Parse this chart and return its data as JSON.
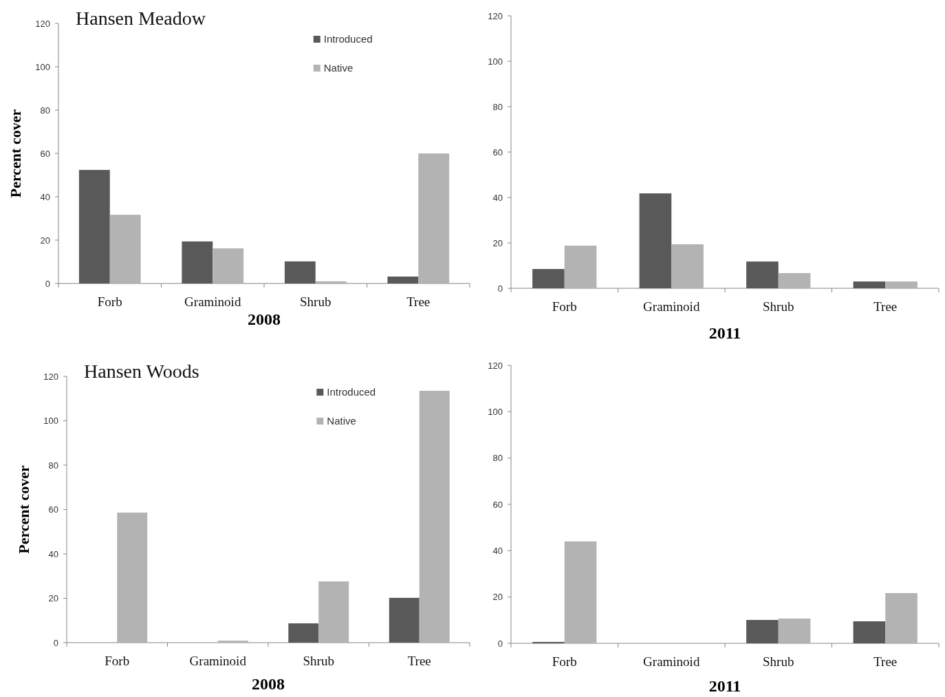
{
  "chart_data": [
    {
      "type": "bar",
      "title": "Hansen Meadow",
      "xlabel": "2008",
      "ylabel": "Percent cover",
      "categories": [
        "Forb",
        "Graminoid",
        "Shrub",
        "Tree"
      ],
      "ylim": [
        0,
        120
      ],
      "yticks": [
        0,
        20,
        40,
        60,
        80,
        100,
        120
      ],
      "legend": "top",
      "grid": false,
      "series": [
        {
          "name": "Introduced",
          "color": "#595959",
          "values": [
            52.4,
            19.4,
            10.2,
            3.2
          ]
        },
        {
          "name": "Native",
          "color": "#b3b3b3",
          "values": [
            31.7,
            16.2,
            1,
            60
          ]
        }
      ]
    },
    {
      "type": "bar",
      "xlabel": "2011",
      "categories": [
        "Forb",
        "Graminoid",
        "Shrub",
        "Tree"
      ],
      "ylim": [
        0,
        120
      ],
      "yticks": [
        0,
        20,
        40,
        60,
        80,
        100,
        120
      ],
      "grid": false,
      "series": [
        {
          "color": "#595959",
          "values": [
            8.5,
            41.8,
            11.8,
            3
          ]
        },
        {
          "color": "#b3b3b3",
          "values": [
            18.8,
            19.4,
            6.7,
            3
          ]
        }
      ]
    },
    {
      "type": "bar",
      "title": "Hansen Woods",
      "xlabel": "2008",
      "ylabel": "Percent cover",
      "categories": [
        "Forb",
        "Graminoid",
        "Shrub",
        "Tree"
      ],
      "ylim": [
        0,
        120
      ],
      "yticks": [
        0,
        20,
        40,
        60,
        80,
        100,
        120
      ],
      "legend": "top",
      "grid": false,
      "series": [
        {
          "name": "Introduced",
          "color": "#595959",
          "values": [
            0,
            0,
            8.7,
            20.2
          ]
        },
        {
          "name": "Native",
          "color": "#b3b3b3",
          "values": [
            58.6,
            0.9,
            27.6,
            113.5
          ]
        }
      ]
    },
    {
      "type": "bar",
      "xlabel": "2011",
      "categories": [
        "Forb",
        "Graminoid",
        "Shrub",
        "Tree"
      ],
      "ylim": [
        0,
        120
      ],
      "yticks": [
        0,
        20,
        40,
        60,
        80,
        100,
        120
      ],
      "grid": false,
      "series": [
        {
          "color": "#595959",
          "values": [
            0.6,
            0,
            10.1,
            9.5
          ]
        },
        {
          "color": "#b3b3b3",
          "values": [
            44,
            0,
            10.7,
            21.7
          ]
        }
      ]
    }
  ]
}
